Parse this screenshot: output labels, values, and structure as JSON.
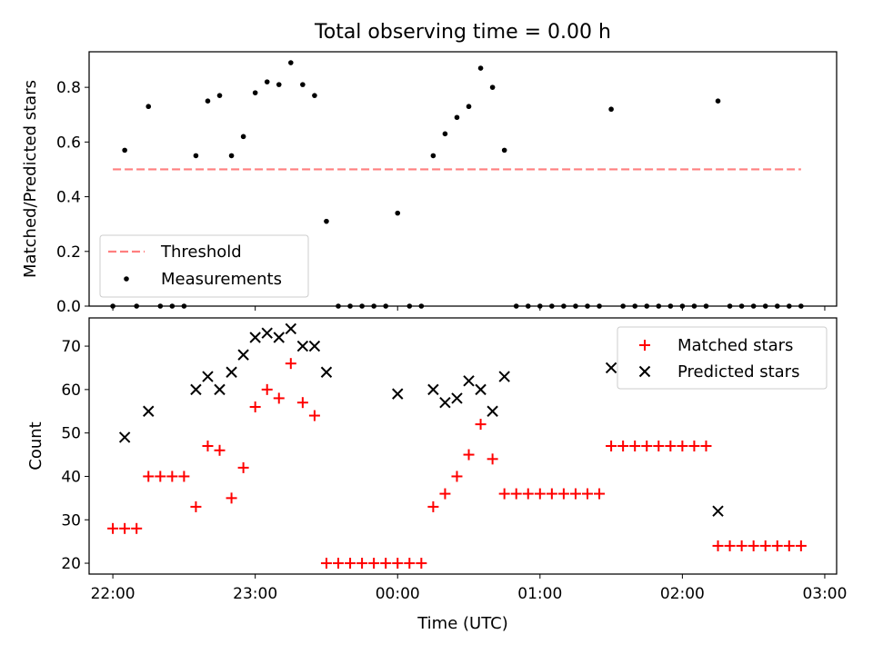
{
  "figure": {
    "title": "Total observing time = 0.00 h"
  },
  "chart_data": [
    {
      "type": "scatter",
      "title": "Total observing time = 0.00 h",
      "xlabel": "",
      "ylabel": "Matched/Predicted stars",
      "xlim": [
        "21:50",
        "03:05"
      ],
      "ylim": [
        0,
        0.93
      ],
      "yticks": [
        0.0,
        0.2,
        0.4,
        0.6,
        0.8
      ],
      "ytick_labels": [
        "0.0",
        "0.2",
        "0.4",
        "0.6",
        "0.8"
      ],
      "legend": {
        "position": "lower-left",
        "entries": [
          {
            "label": "Threshold",
            "marker": "dashed-line",
            "color": "#ff7f7f"
          },
          {
            "label": "Measurements",
            "marker": "dot",
            "color": "#000000"
          }
        ]
      },
      "threshold": {
        "label": "Threshold",
        "value": 0.5,
        "x_start": "22:00",
        "x_end": "02:50",
        "color": "#ff7f7f",
        "style": "dashed"
      },
      "series": [
        {
          "name": "Measurements",
          "color": "#000000",
          "marker": "dot",
          "x": [
            "22:00",
            "22:05",
            "22:10",
            "22:15",
            "22:20",
            "22:25",
            "22:30",
            "22:35",
            "22:40",
            "22:45",
            "22:50",
            "22:55",
            "23:00",
            "23:05",
            "23:10",
            "23:15",
            "23:20",
            "23:25",
            "23:30",
            "23:35",
            "23:40",
            "23:45",
            "23:50",
            "23:55",
            "00:00",
            "00:05",
            "00:10",
            "00:15",
            "00:20",
            "00:25",
            "00:30",
            "00:35",
            "00:40",
            "00:45",
            "00:50",
            "00:55",
            "01:00",
            "01:05",
            "01:10",
            "01:15",
            "01:20",
            "01:25",
            "01:30",
            "01:35",
            "01:40",
            "01:45",
            "01:50",
            "01:55",
            "02:00",
            "02:05",
            "02:10",
            "02:15",
            "02:20",
            "02:25",
            "02:30",
            "02:35",
            "02:40",
            "02:45",
            "02:50"
          ],
          "y": [
            0.0,
            0.57,
            0.0,
            0.73,
            0.0,
            0.0,
            0.0,
            0.55,
            0.75,
            0.77,
            0.55,
            0.62,
            0.78,
            0.82,
            0.81,
            0.89,
            0.81,
            0.77,
            0.31,
            0.0,
            0.0,
            0.0,
            0.0,
            0.0,
            0.34,
            0.0,
            0.0,
            0.55,
            0.63,
            0.69,
            0.73,
            0.87,
            0.8,
            0.57,
            0.0,
            0.0,
            0.0,
            0.0,
            0.0,
            0.0,
            0.0,
            0.0,
            0.72,
            0.0,
            0.0,
            0.0,
            0.0,
            0.0,
            0.0,
            0.0,
            0.0,
            0.75,
            0.0,
            0.0,
            0.0,
            0.0,
            0.0,
            0.0,
            0.0
          ]
        }
      ]
    },
    {
      "type": "scatter",
      "xlabel": "Time (UTC)",
      "ylabel": "Count",
      "xlim": [
        "21:50",
        "03:05"
      ],
      "ylim": [
        17.5,
        76.5
      ],
      "yticks": [
        20,
        30,
        40,
        50,
        60,
        70
      ],
      "ytick_labels": [
        "20",
        "30",
        "40",
        "50",
        "60",
        "70"
      ],
      "xticks": [
        "22:00",
        "23:00",
        "00:00",
        "01:00",
        "02:00",
        "03:00"
      ],
      "xtick_labels": [
        "22:00",
        "23:00",
        "00:00",
        "01:00",
        "02:00",
        "03:00"
      ],
      "legend": {
        "position": "upper-right",
        "entries": [
          {
            "label": "Matched stars",
            "marker": "plus",
            "color": "#ff0000"
          },
          {
            "label": "Predicted stars",
            "marker": "x",
            "color": "#000000"
          }
        ]
      },
      "series": [
        {
          "name": "Matched stars",
          "color": "#ff0000",
          "marker": "plus",
          "x": [
            "22:00",
            "22:05",
            "22:10",
            "22:15",
            "22:20",
            "22:25",
            "22:30",
            "22:35",
            "22:40",
            "22:45",
            "22:50",
            "22:55",
            "23:00",
            "23:05",
            "23:10",
            "23:15",
            "23:20",
            "23:25",
            "23:30",
            "23:35",
            "23:40",
            "23:45",
            "23:50",
            "23:55",
            "00:00",
            "00:05",
            "00:10",
            "00:15",
            "00:20",
            "00:25",
            "00:30",
            "00:35",
            "00:40",
            "00:45",
            "00:50",
            "00:55",
            "01:00",
            "01:05",
            "01:10",
            "01:15",
            "01:20",
            "01:25",
            "01:30",
            "01:35",
            "01:40",
            "01:45",
            "01:50",
            "01:55",
            "02:00",
            "02:05",
            "02:10",
            "02:15",
            "02:20",
            "02:25",
            "02:30",
            "02:35",
            "02:40",
            "02:45",
            "02:50"
          ],
          "y": [
            28,
            28,
            28,
            40,
            40,
            40,
            40,
            33,
            47,
            46,
            35,
            42,
            56,
            60,
            58,
            66,
            57,
            54,
            20,
            20,
            20,
            20,
            20,
            20,
            20,
            20,
            20,
            33,
            36,
            40,
            45,
            52,
            44,
            36,
            36,
            36,
            36,
            36,
            36,
            36,
            36,
            36,
            47,
            47,
            47,
            47,
            47,
            47,
            47,
            47,
            47,
            24,
            24,
            24,
            24,
            24,
            24,
            24,
            24
          ]
        },
        {
          "name": "Predicted stars",
          "color": "#000000",
          "marker": "x",
          "x": [
            "22:05",
            "22:15",
            "22:35",
            "22:40",
            "22:45",
            "22:50",
            "22:55",
            "23:00",
            "23:05",
            "23:10",
            "23:15",
            "23:20",
            "23:25",
            "23:30",
            "00:00",
            "00:15",
            "00:20",
            "00:25",
            "00:30",
            "00:35",
            "00:40",
            "00:45",
            "01:30",
            "02:15"
          ],
          "y": [
            49,
            55,
            60,
            63,
            60,
            64,
            68,
            72,
            73,
            72,
            74,
            70,
            70,
            64,
            59,
            60,
            57,
            58,
            62,
            60,
            55,
            63,
            65,
            32
          ]
        }
      ]
    }
  ]
}
